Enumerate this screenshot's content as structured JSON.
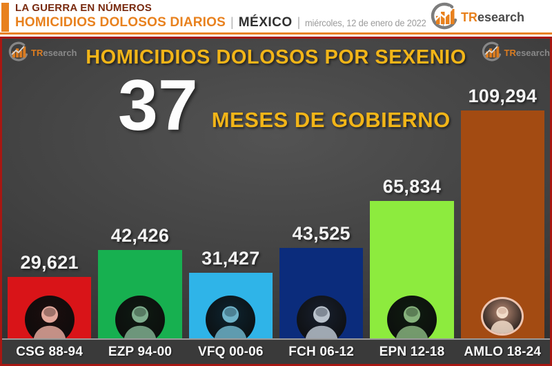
{
  "brand": {
    "prefix": "TR",
    "rest": "esearch"
  },
  "header": {
    "kicker": "LA GUERRA EN NÚMEROS",
    "title": "HOMICIDIOS DOLOSOS DIARIOS",
    "separator": "|",
    "region": "MÉXICO",
    "date": "miércoles, 12 de enero de 2022"
  },
  "chart": {
    "title": "HOMICIDIOS DOLOSOS POR SEXENIO",
    "months_number": "37",
    "months_caption": "MESES DE GOBIERNO"
  },
  "chart_data": {
    "type": "bar",
    "title": "HOMICIDIOS DOLOSOS POR SEXENIO",
    "subtitle": "37 MESES DE GOBIERNO",
    "categories": [
      "CSG 88-94",
      "EZP 94-00",
      "VFQ 00-06",
      "FCH 06-12",
      "EPN 12-18",
      "AMLO 18-24"
    ],
    "values": [
      29621,
      42426,
      31427,
      43525,
      65834,
      109294
    ],
    "value_labels": [
      "29,621",
      "42,426",
      "31,427",
      "43,525",
      "65,834",
      "109,294"
    ],
    "bar_colors": [
      "#d91418",
      "#17b050",
      "#2fb4e8",
      "#0b2c7c",
      "#8deb3e",
      "#a34b12"
    ],
    "ylim": [
      0,
      109294
    ],
    "grid": false,
    "legend": false,
    "portraits": [
      {
        "bg": "#1c0d0d",
        "tint": "#e3a89c",
        "ring": null
      },
      {
        "bg": "#0e1a12",
        "tint": "#7fae8e",
        "ring": null
      },
      {
        "bg": "#0d2430",
        "tint": "#6fb3c9",
        "ring": null
      },
      {
        "bg": "#18202e",
        "tint": "#b9c2cc",
        "ring": null
      },
      {
        "bg": "#0f1c10",
        "tint": "#86b27c",
        "ring": null
      },
      {
        "bg": "#b98a74",
        "tint": "#f2dcc9",
        "ring": "#eec4b0"
      }
    ]
  }
}
